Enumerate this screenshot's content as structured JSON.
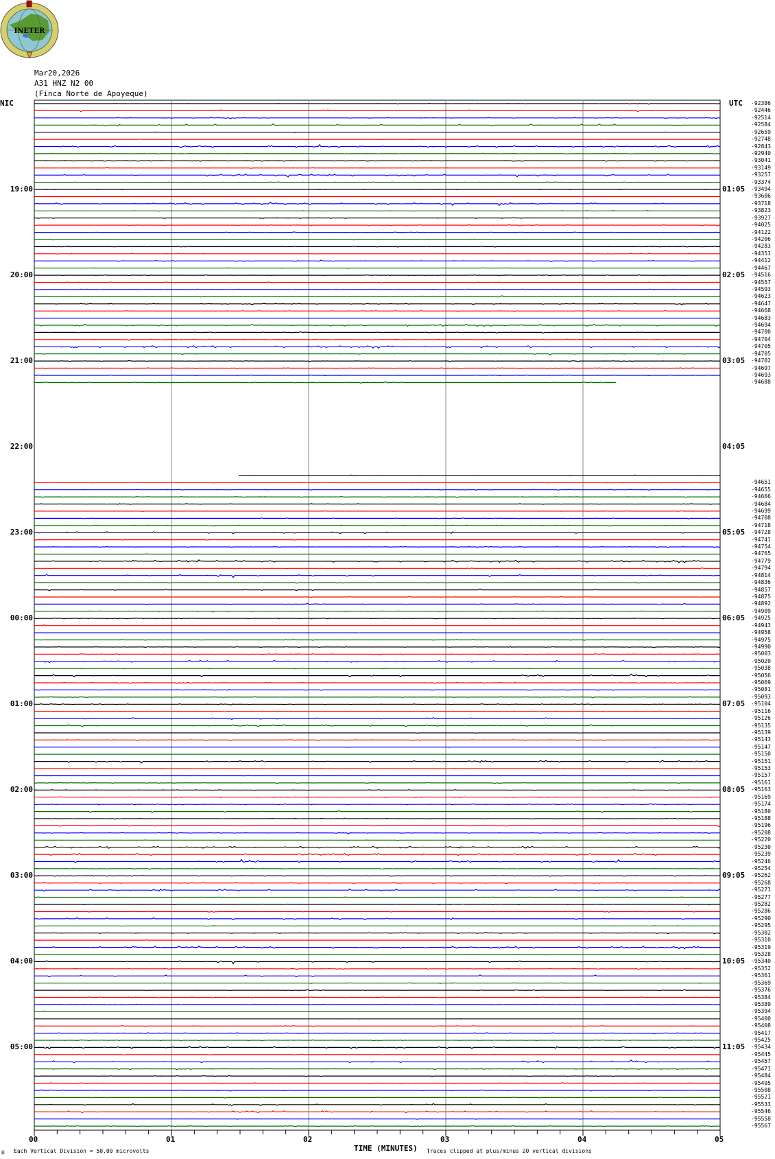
{
  "logo": {
    "text": "INETER"
  },
  "header": {
    "date": "Mar20,2026",
    "channel": "A31 HNZ N2 00",
    "location": "(Finca Norte de Apoyeque)"
  },
  "left_zone": "NIC",
  "right_zone": "UTC",
  "left_hours": [
    "19:00",
    "20:00",
    "21:00",
    "22:00",
    "23:00",
    "00:00",
    "01:00",
    "02:00",
    "03:00",
    "04:00",
    "05:00"
  ],
  "right_hours": [
    "01:05",
    "02:05",
    "03:05",
    "04:05",
    "05:05",
    "06:05",
    "07:05",
    "08:05",
    "09:05",
    "10:05",
    "11:05"
  ],
  "trace_colors": [
    "#000000",
    "#ff0000",
    "#0000ff",
    "#007000"
  ],
  "trace_labels_before_gap": [
    "-92386",
    "-92446",
    "-92514",
    "-92584",
    "-92659",
    "-92748",
    "-92843",
    "-92940",
    "-93041",
    "-93149",
    "-93257",
    "-93374",
    "-93494",
    "-93606",
    "-93718",
    "-93823",
    "-93927",
    "-94025",
    "-94122",
    "-94206",
    "-94283",
    "-94351",
    "-94412",
    "-94467",
    "-94516",
    "-94557",
    "-94593",
    "-94623",
    "-94647",
    "-94668",
    "-94683",
    "-94694",
    "-94700",
    "-94704",
    "-94705",
    "-94705",
    "-94702",
    "-94697",
    "-94693",
    "-94688"
  ],
  "trace_labels_after_gap": [
    "-94651",
    "-94655",
    "-94666",
    "-94684",
    "-94699",
    "-94708",
    "-94718",
    "-94728",
    "-94741",
    "-94754",
    "-94765",
    "-94779",
    "-94794",
    "-94814",
    "-94836",
    "-94857",
    "-94875",
    "-94892",
    "-94909",
    "-94925",
    "-94943",
    "-94958",
    "-94975",
    "-94990",
    "-95003",
    "-95020",
    "-95038",
    "-95056",
    "-95069",
    "-95081",
    "-95093",
    "-95104",
    "-95116",
    "-95126",
    "-95135",
    "-95139",
    "-95143",
    "-95147",
    "-95150",
    "-95151",
    "-95153",
    "-95157",
    "-95161",
    "-95163",
    "-95169",
    "-95174",
    "-95180",
    "-95188",
    "-95196",
    "-95208",
    "-95220",
    "-95230",
    "-95239",
    "-95246",
    "-95254",
    "-95262",
    "-95268",
    "-95271",
    "-95277",
    "-95282",
    "-95286",
    "-95290",
    "-95295",
    "-95302",
    "-95310",
    "-95319",
    "-95328",
    "-95340",
    "-95352",
    "-95361",
    "-95369",
    "-95376",
    "-95384",
    "-95389",
    "-95394",
    "-95400",
    "-95408",
    "-95417",
    "-95425",
    "-95434",
    "-95445",
    "-95457",
    "-95471",
    "-95484",
    "-95495",
    "-95508",
    "-95521",
    "-95533",
    "-95546",
    "-95558",
    "-95567"
  ],
  "data_gap": {
    "last_trace_end_min": 4.24,
    "resume_trace_start_min": 1.49
  },
  "x_ticks": [
    "00",
    "01",
    "02",
    "03",
    "04",
    "05"
  ],
  "x_axis_label": "TIME (MINUTES)",
  "footer": {
    "mu": "μ",
    "scale_note": "Each Vertical Division =    50.00 microvolts",
    "clip_note": "Traces clipped at plus/minus 20 vertical divisions"
  }
}
